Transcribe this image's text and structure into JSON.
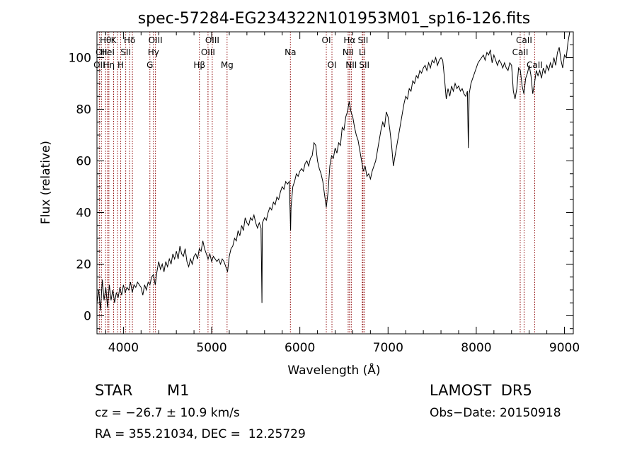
{
  "chart_data": {
    "type": "line",
    "title": "spec-57284-EG234322N101953M01_sp16-126.fits",
    "xlabel": "Wavelength (Å)",
    "ylabel": "Flux (relative)",
    "xlim": [
      3700,
      9100
    ],
    "ylim": [
      -7,
      110
    ],
    "xticks": [
      4000,
      5000,
      6000,
      7000,
      8000,
      9000
    ],
    "yticks": [
      0,
      20,
      40,
      60,
      80,
      100
    ],
    "line_color": "#000000",
    "marker_color": "#8b0000",
    "spectrum": [
      [
        3700,
        5
      ],
      [
        3720,
        10
      ],
      [
        3740,
        2
      ],
      [
        3760,
        14
      ],
      [
        3780,
        6
      ],
      [
        3800,
        11
      ],
      [
        3820,
        3
      ],
      [
        3840,
        12
      ],
      [
        3860,
        6
      ],
      [
        3880,
        10
      ],
      [
        3900,
        5
      ],
      [
        3920,
        9
      ],
      [
        3940,
        7
      ],
      [
        3960,
        11
      ],
      [
        3980,
        8
      ],
      [
        4000,
        12
      ],
      [
        4020,
        9
      ],
      [
        4040,
        11
      ],
      [
        4060,
        10
      ],
      [
        4080,
        13
      ],
      [
        4100,
        9
      ],
      [
        4120,
        12
      ],
      [
        4140,
        11
      ],
      [
        4160,
        13
      ],
      [
        4180,
        12
      ],
      [
        4200,
        11
      ],
      [
        4220,
        8
      ],
      [
        4240,
        12
      ],
      [
        4260,
        10
      ],
      [
        4280,
        13
      ],
      [
        4300,
        12
      ],
      [
        4320,
        15
      ],
      [
        4340,
        16
      ],
      [
        4360,
        12
      ],
      [
        4380,
        17
      ],
      [
        4400,
        21
      ],
      [
        4420,
        18
      ],
      [
        4440,
        20
      ],
      [
        4460,
        17
      ],
      [
        4480,
        21
      ],
      [
        4500,
        19
      ],
      [
        4520,
        22
      ],
      [
        4540,
        20
      ],
      [
        4560,
        24
      ],
      [
        4580,
        22
      ],
      [
        4600,
        25
      ],
      [
        4620,
        22
      ],
      [
        4640,
        27
      ],
      [
        4660,
        24
      ],
      [
        4680,
        23
      ],
      [
        4700,
        26
      ],
      [
        4720,
        21
      ],
      [
        4740,
        19
      ],
      [
        4760,
        22
      ],
      [
        4780,
        20
      ],
      [
        4800,
        23
      ],
      [
        4820,
        24
      ],
      [
        4840,
        22
      ],
      [
        4860,
        26
      ],
      [
        4880,
        25
      ],
      [
        4900,
        29
      ],
      [
        4920,
        26
      ],
      [
        4940,
        24
      ],
      [
        4960,
        22
      ],
      [
        4980,
        24
      ],
      [
        5000,
        21
      ],
      [
        5020,
        23
      ],
      [
        5040,
        22
      ],
      [
        5060,
        21
      ],
      [
        5080,
        22
      ],
      [
        5100,
        20
      ],
      [
        5120,
        22
      ],
      [
        5140,
        21
      ],
      [
        5160,
        19
      ],
      [
        5180,
        17
      ],
      [
        5200,
        23
      ],
      [
        5220,
        26
      ],
      [
        5240,
        27
      ],
      [
        5260,
        30
      ],
      [
        5280,
        29
      ],
      [
        5300,
        33
      ],
      [
        5320,
        31
      ],
      [
        5340,
        35
      ],
      [
        5360,
        33
      ],
      [
        5380,
        38
      ],
      [
        5400,
        36
      ],
      [
        5420,
        35
      ],
      [
        5440,
        38
      ],
      [
        5460,
        37
      ],
      [
        5480,
        39
      ],
      [
        5500,
        36
      ],
      [
        5520,
        34
      ],
      [
        5540,
        36
      ],
      [
        5560,
        34
      ],
      [
        5570,
        5
      ],
      [
        5575,
        36
      ],
      [
        5600,
        38
      ],
      [
        5620,
        37
      ],
      [
        5640,
        40
      ],
      [
        5660,
        42
      ],
      [
        5680,
        41
      ],
      [
        5700,
        44
      ],
      [
        5720,
        43
      ],
      [
        5740,
        46
      ],
      [
        5760,
        45
      ],
      [
        5780,
        48
      ],
      [
        5800,
        50
      ],
      [
        5820,
        49
      ],
      [
        5840,
        52
      ],
      [
        5860,
        51
      ],
      [
        5880,
        52
      ],
      [
        5895,
        33
      ],
      [
        5900,
        42
      ],
      [
        5920,
        50
      ],
      [
        5940,
        52
      ],
      [
        5960,
        55
      ],
      [
        5980,
        54
      ],
      [
        6000,
        56
      ],
      [
        6020,
        57
      ],
      [
        6040,
        56
      ],
      [
        6060,
        59
      ],
      [
        6080,
        60
      ],
      [
        6100,
        58
      ],
      [
        6120,
        61
      ],
      [
        6140,
        62
      ],
      [
        6160,
        67
      ],
      [
        6180,
        66
      ],
      [
        6200,
        60
      ],
      [
        6220,
        57
      ],
      [
        6240,
        55
      ],
      [
        6260,
        52
      ],
      [
        6280,
        47
      ],
      [
        6300,
        42
      ],
      [
        6320,
        48
      ],
      [
        6340,
        58
      ],
      [
        6360,
        62
      ],
      [
        6380,
        61
      ],
      [
        6400,
        65
      ],
      [
        6420,
        63
      ],
      [
        6440,
        67
      ],
      [
        6460,
        66
      ],
      [
        6480,
        73
      ],
      [
        6500,
        72
      ],
      [
        6520,
        77
      ],
      [
        6540,
        79
      ],
      [
        6560,
        83
      ],
      [
        6580,
        79
      ],
      [
        6600,
        77
      ],
      [
        6620,
        73
      ],
      [
        6640,
        70
      ],
      [
        6660,
        68
      ],
      [
        6680,
        64
      ],
      [
        6700,
        60
      ],
      [
        6720,
        56
      ],
      [
        6740,
        58
      ],
      [
        6760,
        54
      ],
      [
        6780,
        55
      ],
      [
        6800,
        53
      ],
      [
        6820,
        56
      ],
      [
        6840,
        58
      ],
      [
        6860,
        60
      ],
      [
        6880,
        64
      ],
      [
        6900,
        68
      ],
      [
        6920,
        72
      ],
      [
        6940,
        75
      ],
      [
        6960,
        73
      ],
      [
        6980,
        79
      ],
      [
        7000,
        77
      ],
      [
        7020,
        72
      ],
      [
        7040,
        66
      ],
      [
        7060,
        58
      ],
      [
        7080,
        62
      ],
      [
        7100,
        66
      ],
      [
        7120,
        70
      ],
      [
        7140,
        74
      ],
      [
        7160,
        78
      ],
      [
        7180,
        82
      ],
      [
        7200,
        85
      ],
      [
        7220,
        84
      ],
      [
        7240,
        88
      ],
      [
        7260,
        87
      ],
      [
        7280,
        91
      ],
      [
        7300,
        90
      ],
      [
        7320,
        93
      ],
      [
        7340,
        92
      ],
      [
        7360,
        95
      ],
      [
        7380,
        94
      ],
      [
        7400,
        96
      ],
      [
        7420,
        97
      ],
      [
        7440,
        95
      ],
      [
        7460,
        98
      ],
      [
        7480,
        96
      ],
      [
        7500,
        99
      ],
      [
        7520,
        98
      ],
      [
        7540,
        100
      ],
      [
        7560,
        97
      ],
      [
        7580,
        99
      ],
      [
        7600,
        100
      ],
      [
        7620,
        99
      ],
      [
        7640,
        92
      ],
      [
        7660,
        84
      ],
      [
        7680,
        88
      ],
      [
        7700,
        85
      ],
      [
        7720,
        89
      ],
      [
        7740,
        87
      ],
      [
        7760,
        90
      ],
      [
        7780,
        88
      ],
      [
        7800,
        89
      ],
      [
        7820,
        87
      ],
      [
        7840,
        88
      ],
      [
        7860,
        86
      ],
      [
        7880,
        85
      ],
      [
        7900,
        87
      ],
      [
        7910,
        65
      ],
      [
        7920,
        86
      ],
      [
        7940,
        90
      ],
      [
        7960,
        92
      ],
      [
        7980,
        94
      ],
      [
        8000,
        96
      ],
      [
        8020,
        98
      ],
      [
        8040,
        99
      ],
      [
        8060,
        100
      ],
      [
        8080,
        101
      ],
      [
        8100,
        99
      ],
      [
        8120,
        102
      ],
      [
        8140,
        101
      ],
      [
        8160,
        103
      ],
      [
        8180,
        98
      ],
      [
        8200,
        101
      ],
      [
        8220,
        99
      ],
      [
        8240,
        97
      ],
      [
        8260,
        99
      ],
      [
        8280,
        98
      ],
      [
        8300,
        96
      ],
      [
        8320,
        98
      ],
      [
        8340,
        96
      ],
      [
        8360,
        95
      ],
      [
        8380,
        98
      ],
      [
        8400,
        97
      ],
      [
        8420,
        87
      ],
      [
        8440,
        84
      ],
      [
        8460,
        88
      ],
      [
        8480,
        96
      ],
      [
        8500,
        95
      ],
      [
        8520,
        89
      ],
      [
        8540,
        86
      ],
      [
        8560,
        92
      ],
      [
        8580,
        94
      ],
      [
        8600,
        97
      ],
      [
        8620,
        93
      ],
      [
        8640,
        86
      ],
      [
        8660,
        90
      ],
      [
        8680,
        95
      ],
      [
        8700,
        93
      ],
      [
        8720,
        95
      ],
      [
        8740,
        92
      ],
      [
        8760,
        96
      ],
      [
        8780,
        94
      ],
      [
        8800,
        97
      ],
      [
        8820,
        95
      ],
      [
        8840,
        98
      ],
      [
        8860,
        96
      ],
      [
        8880,
        100
      ],
      [
        8900,
        97
      ],
      [
        8920,
        102
      ],
      [
        8940,
        104
      ],
      [
        8960,
        99
      ],
      [
        8980,
        96
      ],
      [
        9000,
        101
      ],
      [
        9020,
        100
      ],
      [
        9040,
        106
      ],
      [
        9060,
        110
      ]
    ],
    "lines": [
      {
        "wl": 3727,
        "labels": [
          "OII"
        ],
        "rows": [
          2
        ]
      },
      {
        "wl": 3750,
        "labels": [
          "OII"
        ],
        "rows": [
          1
        ]
      },
      {
        "wl": 3798,
        "labels": [
          "Hθ"
        ],
        "rows": [
          0
        ]
      },
      {
        "wl": 3820,
        "labels": [
          "HeI"
        ],
        "rows": [
          1
        ]
      },
      {
        "wl": 3835,
        "labels": [
          "Hη"
        ],
        "rows": [
          2
        ]
      },
      {
        "wl": 3889,
        "labels": [
          "K"
        ],
        "rows": [
          0
        ]
      },
      {
        "wl": 3934,
        "labels": [],
        "rows": []
      },
      {
        "wl": 3969,
        "labels": [
          "H"
        ],
        "rows": [
          2
        ]
      },
      {
        "wl": 4026,
        "labels": [
          "SII"
        ],
        "rows": [
          1
        ]
      },
      {
        "wl": 4070,
        "labels": [
          "Hδ"
        ],
        "rows": [
          0
        ]
      },
      {
        "wl": 4102,
        "labels": [],
        "rows": []
      },
      {
        "wl": 4300,
        "labels": [
          "G"
        ],
        "rows": [
          2
        ]
      },
      {
        "wl": 4340,
        "labels": [
          "Hγ"
        ],
        "rows": [
          1
        ]
      },
      {
        "wl": 4363,
        "labels": [
          "OIII"
        ],
        "rows": [
          0
        ]
      },
      {
        "wl": 4861,
        "labels": [
          "Hβ"
        ],
        "rows": [
          2
        ]
      },
      {
        "wl": 4959,
        "labels": [
          "OIII"
        ],
        "rows": [
          1
        ]
      },
      {
        "wl": 5007,
        "labels": [
          "OIII"
        ],
        "rows": [
          0
        ]
      },
      {
        "wl": 5175,
        "labels": [
          "Mg"
        ],
        "rows": [
          2
        ]
      },
      {
        "wl": 5893,
        "labels": [
          "Na"
        ],
        "rows": [
          1
        ]
      },
      {
        "wl": 6300,
        "labels": [
          "OI"
        ],
        "rows": [
          0
        ]
      },
      {
        "wl": 6364,
        "labels": [
          "OI"
        ],
        "rows": [
          2
        ]
      },
      {
        "wl": 6548,
        "labels": [
          "NII"
        ],
        "rows": [
          1
        ]
      },
      {
        "wl": 6563,
        "labels": [
          "Hα"
        ],
        "rows": [
          0
        ]
      },
      {
        "wl": 6583,
        "labels": [
          "NII"
        ],
        "rows": [
          2
        ]
      },
      {
        "wl": 6708,
        "labels": [
          "Li"
        ],
        "rows": [
          1
        ]
      },
      {
        "wl": 6716,
        "labels": [
          "SII"
        ],
        "rows": [
          0
        ]
      },
      {
        "wl": 6731,
        "labels": [
          "SII"
        ],
        "rows": [
          2
        ]
      },
      {
        "wl": 8498,
        "labels": [
          "CaII"
        ],
        "rows": [
          1
        ]
      },
      {
        "wl": 8542,
        "labels": [
          "CaII"
        ],
        "rows": [
          0
        ]
      },
      {
        "wl": 8662,
        "labels": [
          "CaII"
        ],
        "rows": [
          2
        ]
      }
    ]
  },
  "info": {
    "object_class": "STAR",
    "subclass": "M1",
    "survey": "LAMOST  DR5",
    "cz": "cz = −26.7 ± 10.9 km/s",
    "obs_date": "Obs−Date: 20150918",
    "coords": "RA = 355.21034, DEC =  12.25729"
  }
}
